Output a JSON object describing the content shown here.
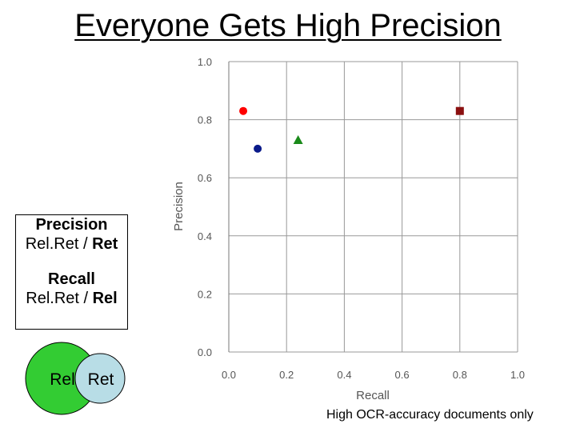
{
  "slide": {
    "title": "Everyone Gets High Precision",
    "footnote": "High OCR-accuracy documents only"
  },
  "definitions": {
    "precision_title": "Precision",
    "precision_formula_left": "Rel.Ret / ",
    "precision_formula_right": "Ret",
    "recall_title": "Recall",
    "recall_formula_left": "Rel.Ret / ",
    "recall_formula_right": "Rel"
  },
  "venn": {
    "rel_label": "Rel",
    "ret_label": "Ret",
    "rel_color": "#33cc33",
    "ret_color": "#b8dde6"
  },
  "chart_data": {
    "type": "scatter",
    "xlabel": "Recall",
    "ylabel": "Precision",
    "xlim": [
      0,
      1
    ],
    "ylim": [
      0,
      1
    ],
    "xticks": [
      "0.0",
      "0.2",
      "0.4",
      "0.6",
      "0.8",
      "1.0"
    ],
    "yticks": [
      "0.0",
      "0.2",
      "0.4",
      "0.6",
      "0.8",
      "1.0"
    ],
    "grid": true,
    "points": [
      {
        "x": 0.05,
        "y": 0.83,
        "marker": "circle",
        "color": "#ff0000"
      },
      {
        "x": 0.1,
        "y": 0.7,
        "marker": "circle",
        "color": "#0a1a8a"
      },
      {
        "x": 0.24,
        "y": 0.73,
        "marker": "triangle",
        "color": "#1a8a1a"
      },
      {
        "x": 0.8,
        "y": 0.83,
        "marker": "square",
        "color": "#8b1010"
      }
    ]
  }
}
